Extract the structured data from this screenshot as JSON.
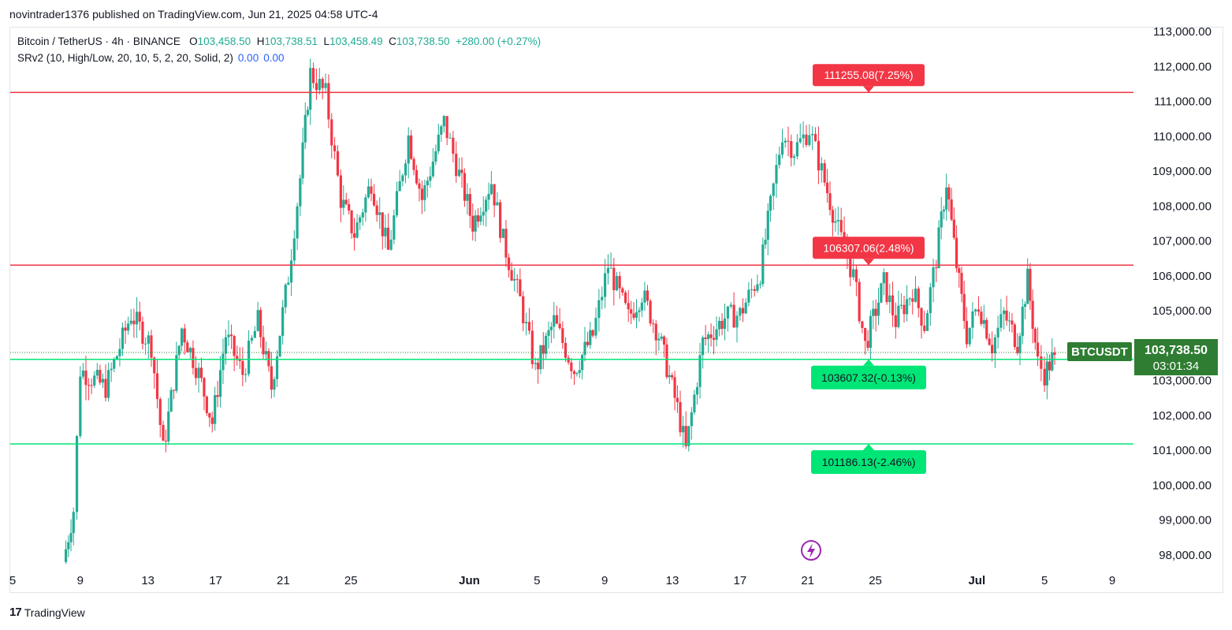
{
  "header": {
    "published_line": "novintrader1376 published on TradingView.com, Jun 21, 2025 04:58 UTC-4"
  },
  "legend": {
    "symbol": "Bitcoin / TetherUS · 4h · BINANCE",
    "open_label": "O",
    "open": "103,458.50",
    "high_label": "H",
    "high": "103,738.51",
    "low_label": "L",
    "low": "103,458.49",
    "close_label": "C",
    "close": "103,738.50",
    "change": "+280.00 (+0.27%)",
    "indicator": "SRv2 (10, High/Low, 20, 10, 5, 2, 20, Solid, 2)",
    "indicator_val1": "0.00",
    "indicator_val2": "0.00"
  },
  "footer": {
    "brand": "TradingView",
    "logo_text": "17"
  },
  "colors": {
    "up": "#22ab94",
    "down": "#f23645",
    "support": "#00e676",
    "resistance": "#f23645",
    "price_badge": "#2e7d32",
    "grid": "#e0e3eb",
    "axis_text": "#131722"
  },
  "chart_data": {
    "type": "candlestick",
    "symbol": "BTCUSDT",
    "interval": "4h",
    "ylim": [
      97500,
      113300
    ],
    "y_ticks": [
      98000,
      99000,
      100000,
      101000,
      102000,
      103000,
      104000,
      105000,
      106000,
      107000,
      108000,
      109000,
      110000,
      111000,
      112000,
      113000
    ],
    "y_tick_labels": [
      "98,000.00",
      "99,000.00",
      "100,000.00",
      "101,000.00",
      "102,000.00",
      "103,000.00",
      "104,000.00",
      "105,000.00",
      "106,000.00",
      "107,000.00",
      "108,000.00",
      "109,000.00",
      "110,000.00",
      "111,000.00",
      "112,000.00",
      "113,000.00"
    ],
    "x_ticks": [
      "5",
      "9",
      "13",
      "17",
      "21",
      "25",
      "Jun",
      "5",
      "9",
      "13",
      "17",
      "21",
      "25",
      "Jul",
      "5",
      "9"
    ],
    "x_tick_days": [
      5,
      9,
      13,
      17,
      21,
      25,
      32,
      36,
      40,
      44,
      48,
      52,
      56,
      62,
      66,
      70
    ],
    "day_origin": "May 1, 2025",
    "horizontal_levels": [
      {
        "price": 111255.08,
        "label": "111255.08(7.25%)",
        "kind": "resistance"
      },
      {
        "price": 106307.06,
        "label": "106307.06(2.48%)",
        "kind": "resistance"
      },
      {
        "price": 103607.32,
        "label": "103607.32(-0.13%)",
        "kind": "support"
      },
      {
        "price": 101186.13,
        "label": "101186.13(-2.46%)",
        "kind": "support"
      }
    ],
    "last_price": {
      "ticker": "BTCUSDT",
      "price": "103,738.50",
      "countdown": "03:01:34",
      "value": 103738.5
    },
    "key_points": [
      [
        8.0,
        97800
      ],
      [
        8.6,
        99300
      ],
      [
        9.0,
        103300
      ],
      [
        10.5,
        102800
      ],
      [
        12.0,
        104900
      ],
      [
        13.2,
        104000
      ],
      [
        13.9,
        101000
      ],
      [
        15.0,
        104500
      ],
      [
        16.0,
        103200
      ],
      [
        16.8,
        101800
      ],
      [
        17.6,
        104300
      ],
      [
        18.6,
        103200
      ],
      [
        19.5,
        104700
      ],
      [
        20.3,
        102800
      ],
      [
        21.3,
        106000
      ],
      [
        22.0,
        108800
      ],
      [
        22.6,
        111800
      ],
      [
        23.5,
        111200
      ],
      [
        24.4,
        108200
      ],
      [
        25.2,
        107200
      ],
      [
        26.2,
        108700
      ],
      [
        27.2,
        106700
      ],
      [
        28.4,
        110000
      ],
      [
        29.2,
        108200
      ],
      [
        30.5,
        110400
      ],
      [
        31.4,
        108900
      ],
      [
        32.2,
        107500
      ],
      [
        33.3,
        108700
      ],
      [
        34.0,
        107000
      ],
      [
        35.0,
        105300
      ],
      [
        35.9,
        103300
      ],
      [
        37.0,
        104700
      ],
      [
        38.2,
        103300
      ],
      [
        39.3,
        104300
      ],
      [
        40.2,
        106300
      ],
      [
        41.4,
        104800
      ],
      [
        42.2,
        105500
      ],
      [
        43.2,
        104300
      ],
      [
        44.3,
        102200
      ],
      [
        44.8,
        101000
      ],
      [
        45.8,
        104100
      ],
      [
        47.1,
        104800
      ],
      [
        48.0,
        104900
      ],
      [
        49.2,
        106100
      ],
      [
        49.8,
        108000
      ],
      [
        50.5,
        110100
      ],
      [
        51.2,
        109600
      ],
      [
        52.1,
        110200
      ],
      [
        53.0,
        108700
      ],
      [
        53.8,
        107300
      ],
      [
        54.7,
        106000
      ],
      [
        55.4,
        104000
      ],
      [
        56.5,
        105800
      ],
      [
        57.2,
        104700
      ],
      [
        58.2,
        105600
      ],
      [
        58.9,
        104600
      ],
      [
        59.6,
        106500
      ],
      [
        60.2,
        108700
      ],
      [
        60.8,
        106300
      ],
      [
        61.4,
        104300
      ],
      [
        62.1,
        105200
      ],
      [
        62.9,
        104000
      ],
      [
        63.6,
        104900
      ],
      [
        64.4,
        104100
      ],
      [
        65.0,
        105900
      ],
      [
        65.6,
        103500
      ],
      [
        66.0,
        103200
      ],
      [
        66.6,
        103738.5
      ]
    ]
  }
}
